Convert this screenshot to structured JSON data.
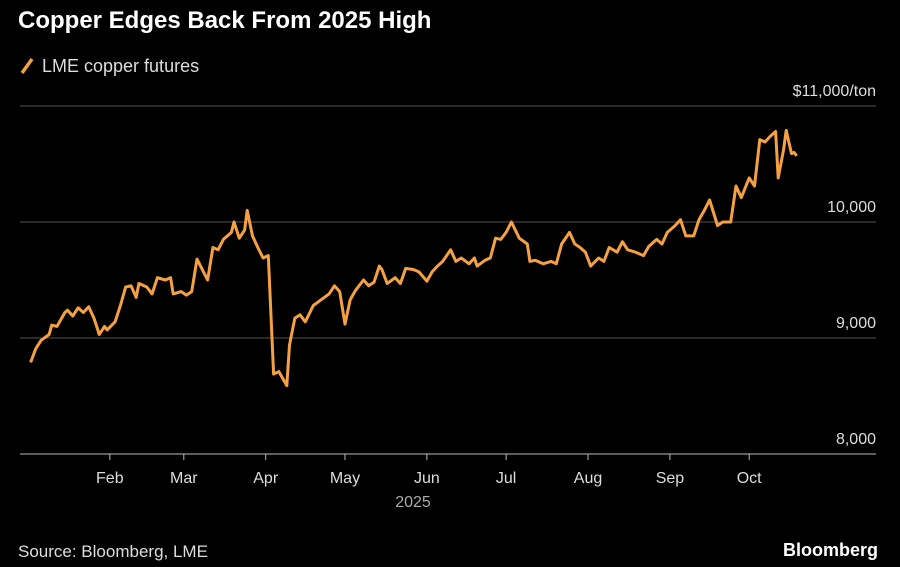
{
  "chart_data": {
    "type": "line",
    "title": "Copper Edges Back From 2025 High",
    "x_label": "2025",
    "source": "Source: Bloomberg, LME",
    "brand": "Bloomberg",
    "grid": true,
    "xlim": [
      -2,
      322
    ],
    "xticks": [
      {
        "value": 32,
        "label": "Feb"
      },
      {
        "value": 60,
        "label": "Mar"
      },
      {
        "value": 91,
        "label": "Apr"
      },
      {
        "value": 121,
        "label": "May"
      },
      {
        "value": 152,
        "label": "Jun"
      },
      {
        "value": 182,
        "label": "Jul"
      },
      {
        "value": 213,
        "label": "Aug"
      },
      {
        "value": 244,
        "label": "Sep"
      },
      {
        "value": 274,
        "label": "Oct"
      }
    ],
    "ylim": [
      8000,
      11000
    ],
    "yticks": [
      {
        "value": 8000,
        "label": "8,000"
      },
      {
        "value": 9000,
        "label": "9,000"
      },
      {
        "value": 10000,
        "label": "10,000"
      },
      {
        "value": 11000,
        "label": "$11,000/ton"
      }
    ],
    "x": [
      2,
      4,
      6,
      9,
      10,
      12,
      15,
      16,
      18,
      20,
      22,
      24,
      26,
      28,
      30,
      31,
      34,
      36,
      38,
      40,
      42,
      43,
      46,
      48,
      50,
      53,
      55,
      56,
      59,
      61,
      63,
      65,
      67,
      69,
      71,
      73,
      75,
      78,
      79,
      81,
      83,
      84,
      86,
      88,
      90,
      92,
      94,
      96,
      99,
      100,
      102,
      104,
      106,
      109,
      112,
      115,
      117,
      119,
      121,
      123,
      125,
      128,
      130,
      132,
      134,
      135,
      137,
      140,
      142,
      144,
      147,
      149,
      152,
      154,
      156,
      158,
      161,
      163,
      165,
      168,
      170,
      171,
      174,
      176,
      178,
      180,
      182,
      184,
      187,
      190,
      191,
      193,
      196,
      199,
      201,
      203,
      206,
      208,
      210,
      212,
      214,
      217,
      219,
      221,
      224,
      226,
      228,
      231,
      234,
      236,
      239,
      241,
      243,
      246,
      248,
      250,
      253,
      255,
      257,
      259,
      262,
      264,
      267,
      269,
      271,
      274,
      276,
      278,
      280,
      282,
      284,
      285,
      287,
      288,
      290,
      291,
      292
    ],
    "series": [
      {
        "name": "LME copper futures",
        "color": "#f5a142",
        "values": [
          8790,
          8910,
          8980,
          9030,
          9110,
          9100,
          9220,
          9240,
          9190,
          9260,
          9220,
          9270,
          9170,
          9030,
          9100,
          9070,
          9140,
          9280,
          9440,
          9450,
          9350,
          9470,
          9440,
          9380,
          9520,
          9500,
          9520,
          9380,
          9400,
          9370,
          9400,
          9680,
          9590,
          9500,
          9780,
          9760,
          9850,
          9910,
          10000,
          9860,
          9930,
          10100,
          9880,
          9780,
          9690,
          9710,
          8690,
          8710,
          8590,
          8940,
          9170,
          9200,
          9140,
          9280,
          9330,
          9380,
          9450,
          9400,
          9120,
          9330,
          9410,
          9500,
          9450,
          9480,
          9620,
          9590,
          9470,
          9520,
          9470,
          9600,
          9590,
          9570,
          9490,
          9570,
          9620,
          9660,
          9760,
          9660,
          9690,
          9640,
          9690,
          9620,
          9670,
          9690,
          9860,
          9850,
          9910,
          10000,
          9860,
          9810,
          9660,
          9670,
          9640,
          9660,
          9640,
          9810,
          9910,
          9810,
          9780,
          9740,
          9620,
          9690,
          9660,
          9780,
          9740,
          9830,
          9760,
          9740,
          9710,
          9790,
          9850,
          9810,
          9910,
          9970,
          10020,
          9880,
          9880,
          10020,
          10100,
          10190,
          9970,
          10000,
          10000,
          10310,
          10210,
          10380,
          10310,
          10710,
          10690,
          10740,
          10780,
          10380,
          10620,
          10790,
          10590,
          10600,
          10570
        ]
      }
    ]
  }
}
